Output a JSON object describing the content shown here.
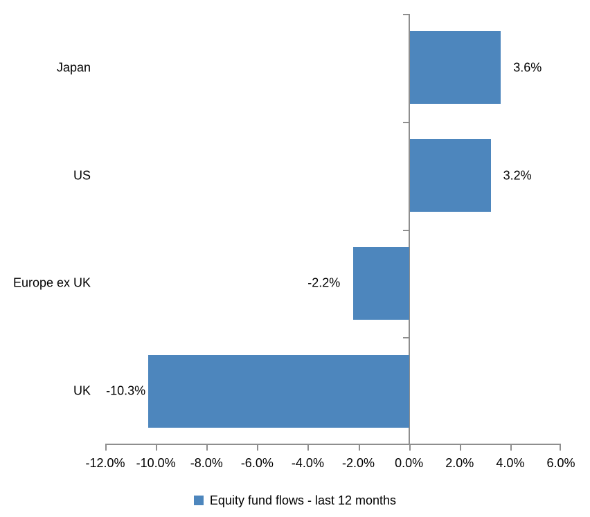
{
  "chart_data": {
    "type": "bar",
    "orientation": "horizontal",
    "title": "",
    "categories": [
      "Japan",
      "US",
      "Europe ex UK",
      "UK"
    ],
    "series": [
      {
        "name": "Equity fund flows - last 12 months",
        "values": [
          3.6,
          3.2,
          -2.2,
          -10.3
        ],
        "data_labels": [
          "3.6%",
          "3.2%",
          "-2.2%",
          "-10.3%"
        ]
      }
    ],
    "xlabel": "",
    "ylabel": "",
    "xlim": [
      -12,
      6
    ],
    "x_tick_step": 2,
    "x_ticks": [
      -12,
      -10,
      -8,
      -6,
      -4,
      -2,
      0,
      2,
      4,
      6
    ],
    "x_tick_labels": [
      "-12.0%",
      "-10.0%",
      "-8.0%",
      "-6.0%",
      "-4.0%",
      "-2.0%",
      "0.0%",
      "2.0%",
      "4.0%",
      "6.0%"
    ],
    "grid": false,
    "legend_position": "bottom",
    "legend_label": "Equity fund flows - last 12 months",
    "colors": {
      "bar": "#4D86BD",
      "axis": "#8E8E8E",
      "text": "#000000",
      "background": "#ffffff"
    }
  }
}
